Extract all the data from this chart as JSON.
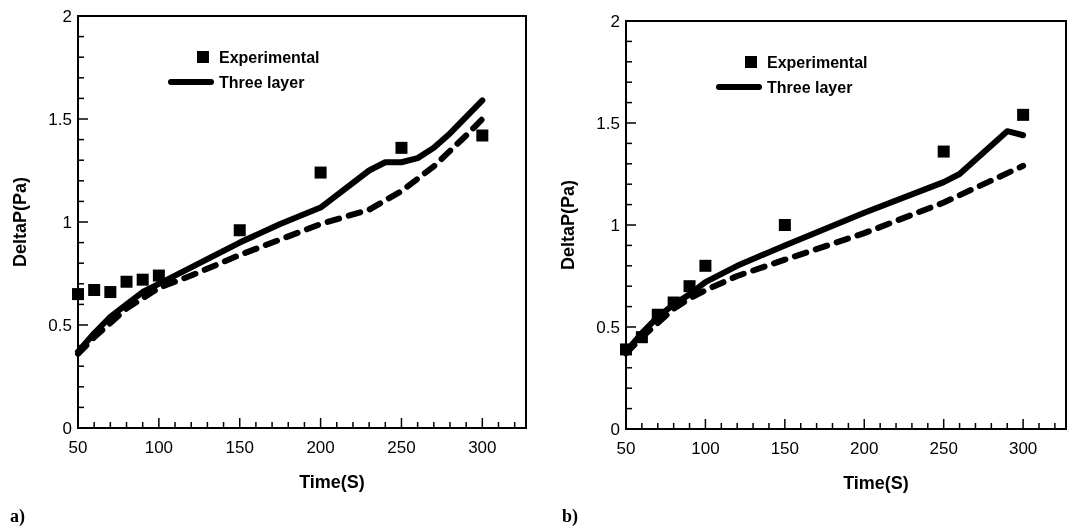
{
  "chart_data": [
    {
      "type": "line",
      "xlabel": "Time(S)",
      "ylabel": "DeltaP(Pa)",
      "xlim": [
        50,
        327
      ],
      "ylim": [
        0,
        2
      ],
      "xticks": [
        50,
        {
          "value": 60,
          "label": null
        },
        {
          "value": 70,
          "label": null
        },
        {
          "value": 80,
          "label": null
        },
        {
          "value": 90,
          "label": null
        },
        100,
        {
          "value": 110,
          "label": null
        },
        {
          "value": 120,
          "label": null
        },
        {
          "value": 130,
          "label": null
        },
        {
          "value": 140,
          "label": null
        },
        150,
        {
          "value": 160,
          "label": null
        },
        {
          "value": 170,
          "label": null
        },
        {
          "value": 180,
          "label": null
        },
        {
          "value": 190,
          "label": null
        },
        200,
        {
          "value": 210,
          "label": null
        },
        {
          "value": 220,
          "label": null
        },
        {
          "value": 230,
          "label": null
        },
        {
          "value": 240,
          "label": null
        },
        250,
        {
          "value": 260,
          "label": null
        },
        {
          "value": 270,
          "label": null
        },
        {
          "value": 280,
          "label": null
        },
        {
          "value": 290,
          "label": null
        },
        300,
        {
          "value": 310,
          "label": null
        },
        {
          "value": 320,
          "label": null
        }
      ],
      "yticks": [
        0,
        {
          "value": 0.1,
          "label": null
        },
        {
          "value": 0.2,
          "label": null
        },
        {
          "value": 0.3,
          "label": null
        },
        {
          "value": 0.4,
          "label": null
        },
        0.5,
        {
          "value": 0.6,
          "label": null
        },
        {
          "value": 0.7,
          "label": null
        },
        {
          "value": 0.8,
          "label": null
        },
        {
          "value": 0.9,
          "label": null
        },
        1,
        {
          "value": 1.1,
          "label": null
        },
        {
          "value": 1.2,
          "label": null
        },
        {
          "value": 1.3,
          "label": null
        },
        {
          "value": 1.4,
          "label": null
        },
        1.5,
        {
          "value": 1.6,
          "label": null
        },
        {
          "value": 1.7,
          "label": null
        },
        {
          "value": 1.8,
          "label": null
        },
        {
          "value": 1.9,
          "label": null
        },
        2
      ],
      "grid": false,
      "legend": "top left",
      "annotations": [
        "a)"
      ],
      "series": [
        {
          "name": "Experimental",
          "type": "scatter",
          "marker": "square",
          "color": "#000000",
          "x": [
            50,
            60,
            70,
            80,
            90,
            100,
            150,
            200,
            250,
            300
          ],
          "values": [
            0.65,
            0.67,
            0.66,
            0.71,
            0.72,
            0.74,
            0.96,
            1.24,
            1.36,
            1.42
          ]
        },
        {
          "name": "Three layer",
          "marker": "none",
          "line_style": "solid",
          "color": "#000000",
          "x": [
            50,
            60,
            70,
            80,
            90,
            100,
            120,
            150,
            175,
            200,
            230,
            240,
            250,
            260,
            270,
            280,
            300
          ],
          "values": [
            0.37,
            0.46,
            0.54,
            0.6,
            0.66,
            0.7,
            0.78,
            0.9,
            0.99,
            1.07,
            1.25,
            1.29,
            1.29,
            1.31,
            1.36,
            1.43,
            1.59
          ]
        },
        {
          "marker": "none",
          "line_style": "dashed",
          "color": "#000000",
          "x": [
            50,
            60,
            70,
            80,
            90,
            100,
            120,
            150,
            200,
            230,
            250,
            270,
            290,
            300
          ],
          "values": [
            0.36,
            0.44,
            0.51,
            0.58,
            0.63,
            0.68,
            0.74,
            0.84,
            0.99,
            1.06,
            1.15,
            1.27,
            1.42,
            1.5
          ]
        }
      ]
    },
    {
      "type": "line",
      "xlabel": "Time(S)",
      "ylabel": "DeltaP(Pa)",
      "xlim": [
        50,
        327
      ],
      "ylim": [
        0,
        2
      ],
      "xticks": [
        50,
        {
          "value": 60,
          "label": null
        },
        {
          "value": 70,
          "label": null
        },
        {
          "value": 80,
          "label": null
        },
        {
          "value": 90,
          "label": null
        },
        100,
        {
          "value": 110,
          "label": null
        },
        {
          "value": 120,
          "label": null
        },
        {
          "value": 130,
          "label": null
        },
        {
          "value": 140,
          "label": null
        },
        150,
        {
          "value": 160,
          "label": null
        },
        {
          "value": 170,
          "label": null
        },
        {
          "value": 180,
          "label": null
        },
        {
          "value": 190,
          "label": null
        },
        200,
        {
          "value": 210,
          "label": null
        },
        {
          "value": 220,
          "label": null
        },
        {
          "value": 230,
          "label": null
        },
        {
          "value": 240,
          "label": null
        },
        250,
        {
          "value": 260,
          "label": null
        },
        {
          "value": 270,
          "label": null
        },
        {
          "value": 280,
          "label": null
        },
        {
          "value": 290,
          "label": null
        },
        300,
        {
          "value": 310,
          "label": null
        },
        {
          "value": 320,
          "label": null
        }
      ],
      "yticks": [
        0,
        {
          "value": 0.1,
          "label": null
        },
        {
          "value": 0.2,
          "label": null
        },
        {
          "value": 0.3,
          "label": null
        },
        {
          "value": 0.4,
          "label": null
        },
        0.5,
        {
          "value": 0.6,
          "label": null
        },
        {
          "value": 0.7,
          "label": null
        },
        {
          "value": 0.8,
          "label": null
        },
        {
          "value": 0.9,
          "label": null
        },
        1,
        {
          "value": 1.1,
          "label": null
        },
        {
          "value": 1.2,
          "label": null
        },
        {
          "value": 1.3,
          "label": null
        },
        {
          "value": 1.4,
          "label": null
        },
        1.5,
        {
          "value": 1.6,
          "label": null
        },
        {
          "value": 1.7,
          "label": null
        },
        {
          "value": 1.8,
          "label": null
        },
        {
          "value": 1.9,
          "label": null
        },
        2
      ],
      "grid": false,
      "legend": "top left",
      "annotations": [
        "b)"
      ],
      "series": [
        {
          "name": "Experimental",
          "type": "scatter",
          "marker": "square",
          "color": "#000000",
          "x": [
            50,
            60,
            70,
            80,
            90,
            100,
            150,
            250,
            300
          ],
          "values": [
            0.39,
            0.45,
            0.56,
            0.62,
            0.7,
            0.8,
            1.0,
            1.36,
            1.54
          ]
        },
        {
          "name": "Three layer",
          "marker": "none",
          "line_style": "solid",
          "color": "#000000",
          "x": [
            50,
            60,
            70,
            80,
            90,
            100,
            120,
            150,
            200,
            250,
            260,
            290,
            300
          ],
          "values": [
            0.38,
            0.47,
            0.55,
            0.61,
            0.66,
            0.72,
            0.8,
            0.9,
            1.06,
            1.21,
            1.25,
            1.46,
            1.44
          ]
        },
        {
          "marker": "none",
          "line_style": "dashed",
          "color": "#000000",
          "x": [
            50,
            60,
            70,
            80,
            90,
            100,
            120,
            150,
            200,
            250,
            300
          ],
          "values": [
            0.37,
            0.45,
            0.52,
            0.59,
            0.64,
            0.68,
            0.75,
            0.83,
            0.96,
            1.11,
            1.29
          ]
        }
      ]
    }
  ]
}
